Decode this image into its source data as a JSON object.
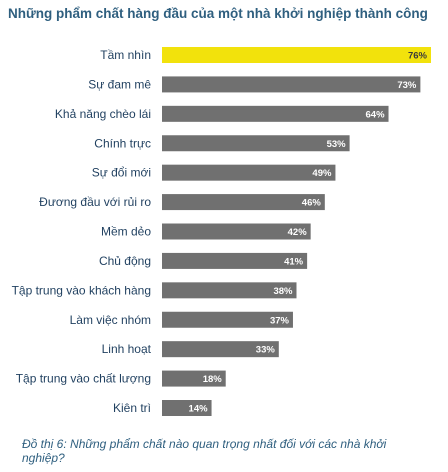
{
  "title": "Những phẩm chất hàng đầu của một nhà khởi nghiệp thành công",
  "caption": "Đồ thị 6: Những phẩm chất nào quan trọng nhất đối với các nhà khởi nghiệp?",
  "colors": {
    "bar": "#707070",
    "highlight_bar": "#f2e20c",
    "title": "#2f5f7f",
    "category_label": "#1f3f5f"
  },
  "chart_data": {
    "type": "bar",
    "orientation": "horizontal",
    "title": "Những phẩm chất hàng đầu của một nhà khởi nghiệp thành công",
    "categories": [
      "Tầm nhìn",
      "Sự đam mê",
      "Khả năng chèo lái",
      "Chính trực",
      "Sự đổi mới",
      "Đương đầu với rủi ro",
      "Mềm dẻo",
      "Chủ động",
      "Tập trung vào khách hàng",
      "Làm việc nhóm",
      "Linh hoạt",
      "Tập trung vào chất lượng",
      "Kiên trì"
    ],
    "values": [
      76,
      73,
      64,
      53,
      49,
      46,
      42,
      41,
      38,
      37,
      33,
      18,
      14
    ],
    "value_labels": [
      "76%",
      "73%",
      "64%",
      "53%",
      "49%",
      "46%",
      "42%",
      "41%",
      "38%",
      "37%",
      "33%",
      "18%",
      "14%"
    ],
    "unit": "%",
    "highlight_index": 0,
    "xlim": [
      0,
      76
    ],
    "grid": false,
    "legend": "none"
  }
}
